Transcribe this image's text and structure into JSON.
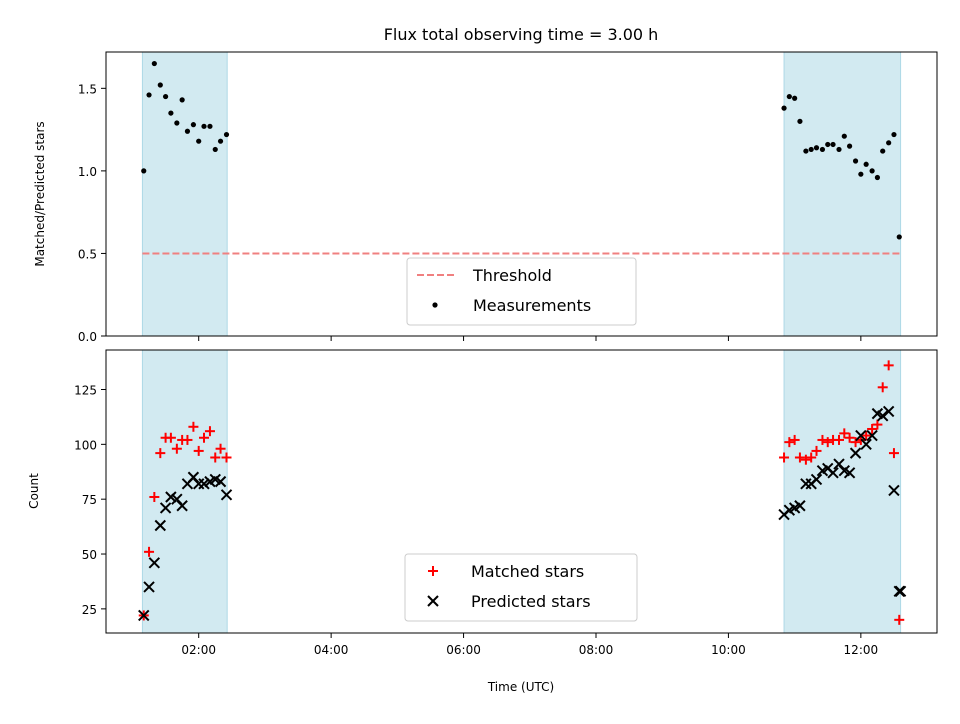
{
  "title": "Flux total observing time = 3.00 h",
  "colors": {
    "span": "#add8e6",
    "threshold": "#f08080",
    "measurement": "#000000",
    "matched": "#ff0000",
    "predicted": "#000000"
  },
  "chart_data": [
    {
      "type": "scatter",
      "ylabel": "Matched/Predicted stars",
      "xlim": [
        0.6,
        13.15
      ],
      "ylim": [
        0.0,
        1.72
      ],
      "yticks": [
        0.0,
        0.5,
        1.0,
        1.5
      ],
      "ytick_labels": [
        "0.0",
        "0.5",
        "1.0",
        "1.5"
      ],
      "xticks": [
        2,
        4,
        6,
        8,
        10,
        12
      ],
      "xtick_labels_shown": false,
      "observing_spans": [
        [
          1.15,
          2.43
        ],
        [
          10.84,
          12.6
        ]
      ],
      "threshold": {
        "name": "Threshold",
        "value": 0.5,
        "style": "dashed"
      },
      "legend": {
        "location": "bottom-center",
        "entries": [
          "Threshold",
          "Measurements"
        ]
      },
      "series": [
        {
          "name": "Measurements",
          "marker": "dot",
          "x": [
            1.17,
            1.25,
            1.33,
            1.42,
            1.5,
            1.58,
            1.67,
            1.75,
            1.83,
            1.92,
            2.0,
            2.08,
            2.17,
            2.25,
            2.33,
            2.42,
            10.84,
            10.92,
            11.0,
            11.08,
            11.17,
            11.25,
            11.33,
            11.42,
            11.5,
            11.58,
            11.67,
            11.75,
            11.83,
            11.92,
            12.0,
            12.08,
            12.17,
            12.25,
            12.33,
            12.42,
            12.5,
            12.58
          ],
          "y": [
            1.0,
            1.46,
            1.65,
            1.52,
            1.45,
            1.35,
            1.29,
            1.43,
            1.24,
            1.28,
            1.18,
            1.27,
            1.27,
            1.13,
            1.18,
            1.22,
            1.38,
            1.45,
            1.44,
            1.3,
            1.12,
            1.13,
            1.14,
            1.13,
            1.16,
            1.16,
            1.13,
            1.21,
            1.15,
            1.06,
            0.98,
            1.04,
            1.0,
            0.96,
            1.12,
            1.17,
            1.22,
            0.6
          ]
        }
      ]
    },
    {
      "type": "scatter",
      "xlabel": "Time (UTC)",
      "ylabel": "Count",
      "xlim": [
        0.6,
        13.15
      ],
      "ylim": [
        14,
        143
      ],
      "yticks": [
        25,
        50,
        75,
        100,
        125
      ],
      "ytick_labels": [
        "25",
        "50",
        "75",
        "100",
        "125"
      ],
      "xticks": [
        2,
        4,
        6,
        8,
        10,
        12
      ],
      "xtick_labels": [
        "02:00",
        "04:00",
        "06:00",
        "08:00",
        "10:00",
        "12:00"
      ],
      "observing_spans": [
        [
          1.15,
          2.43
        ],
        [
          10.84,
          12.6
        ]
      ],
      "legend": {
        "location": "bottom-center",
        "entries": [
          "Matched stars",
          "Predicted stars"
        ]
      },
      "series": [
        {
          "name": "Matched stars",
          "marker": "plus",
          "x": [
            1.17,
            1.25,
            1.33,
            1.42,
            1.5,
            1.58,
            1.67,
            1.75,
            1.83,
            1.92,
            2.0,
            2.08,
            2.17,
            2.25,
            2.33,
            2.42,
            10.84,
            10.92,
            11.0,
            11.08,
            11.17,
            11.25,
            11.33,
            11.42,
            11.5,
            11.58,
            11.67,
            11.75,
            11.83,
            11.92,
            12.0,
            12.08,
            12.17,
            12.25,
            12.33,
            12.42,
            12.5,
            12.58
          ],
          "y": [
            22,
            51,
            76,
            96,
            103,
            103,
            98,
            102,
            102,
            108,
            97,
            103,
            106,
            94,
            98,
            94,
            94,
            101,
            102,
            94,
            93,
            94,
            97,
            102,
            101,
            102,
            102,
            105,
            103,
            101,
            102,
            104,
            107,
            109,
            126,
            136,
            96,
            20
          ]
        },
        {
          "name": "Predicted stars",
          "marker": "x",
          "x": [
            1.17,
            1.25,
            1.33,
            1.42,
            1.5,
            1.58,
            1.67,
            1.75,
            1.83,
            1.92,
            2.0,
            2.08,
            2.17,
            2.25,
            2.33,
            2.42,
            10.84,
            10.92,
            11.0,
            11.08,
            11.17,
            11.25,
            11.33,
            11.42,
            11.5,
            11.58,
            11.67,
            11.75,
            11.83,
            11.92,
            12.0,
            12.08,
            12.17,
            12.25,
            12.33,
            12.42,
            12.5,
            12.58,
            12.6
          ],
          "y": [
            22,
            35,
            46,
            63,
            71,
            76,
            75,
            72,
            82,
            85,
            82,
            82,
            83,
            84,
            83,
            77,
            68,
            70,
            71,
            72,
            82,
            82,
            84,
            88,
            89,
            87,
            91,
            88,
            87,
            96,
            104,
            100,
            104,
            114,
            113,
            115,
            79,
            33,
            33
          ]
        }
      ]
    }
  ]
}
